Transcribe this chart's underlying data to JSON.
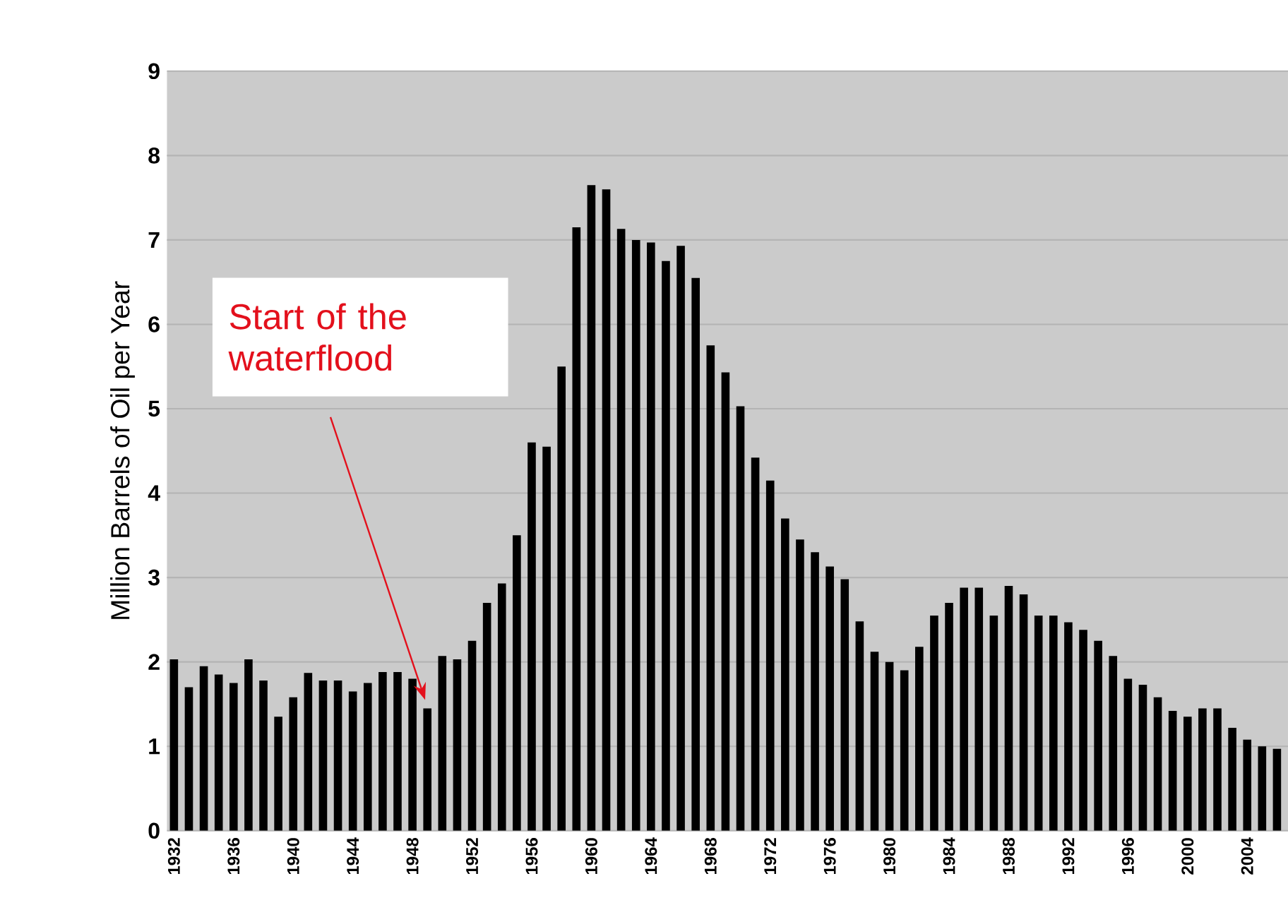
{
  "chart_data": {
    "type": "bar",
    "categories": [
      "1932",
      null,
      null,
      null,
      "1936",
      null,
      null,
      null,
      "1940",
      null,
      null,
      null,
      "1944",
      null,
      null,
      null,
      "1948",
      null,
      null,
      null,
      "1952",
      null,
      null,
      null,
      "1956",
      null,
      null,
      null,
      "1960",
      null,
      null,
      null,
      "1964",
      null,
      null,
      null,
      "1968",
      null,
      null,
      null,
      "1972",
      null,
      null,
      null,
      "1976",
      null,
      null,
      null,
      "1980",
      null,
      null,
      null,
      "1984",
      null,
      null,
      null,
      "1988",
      null,
      null,
      null,
      "1992",
      null,
      null,
      null,
      "1996",
      null,
      null,
      null,
      "2000",
      null,
      null,
      null,
      "2004",
      null,
      null
    ],
    "values": [
      2.03,
      1.7,
      1.95,
      1.85,
      1.75,
      2.03,
      1.78,
      1.35,
      1.58,
      1.87,
      1.78,
      1.78,
      1.65,
      1.75,
      1.88,
      1.88,
      1.8,
      1.45,
      2.07,
      2.03,
      2.25,
      2.7,
      2.93,
      3.5,
      4.6,
      4.55,
      5.5,
      7.15,
      7.65,
      7.6,
      7.13,
      7.0,
      6.97,
      6.75,
      6.93,
      6.55,
      5.75,
      5.43,
      5.03,
      4.42,
      4.15,
      3.7,
      3.45,
      3.3,
      3.13,
      2.98,
      2.48,
      2.12,
      2.0,
      1.9,
      2.18,
      2.55,
      2.7,
      2.88,
      2.88,
      2.55,
      2.9,
      2.8,
      2.55,
      2.55,
      2.47,
      2.38,
      2.25,
      2.07,
      1.8,
      1.73,
      1.58,
      1.42,
      1.35,
      1.45,
      1.45,
      1.22,
      1.08,
      1.0,
      0.97
    ],
    "color": "#000000",
    "ylabel": "Million Barrels of Oil per Year",
    "ylim": [
      0,
      9
    ],
    "yticks": [
      0,
      1,
      2,
      3,
      4,
      5,
      6,
      7,
      8,
      9
    ],
    "grid": "y",
    "annotations": [
      "Start of the waterflood"
    ]
  }
}
